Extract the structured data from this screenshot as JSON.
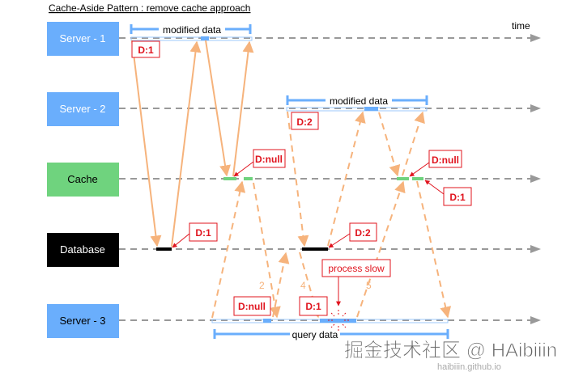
{
  "title": "Cache-Aside Pattern : remove cache approach",
  "time_label": "time",
  "lanes": [
    {
      "label": "Server - 1",
      "color": "#6aaefc"
    },
    {
      "label": "Server - 2",
      "color": "#6aaefc"
    },
    {
      "label": "Cache",
      "color": "#6fd37e"
    },
    {
      "label": "Database",
      "color": "#000000"
    },
    {
      "label": "Server - 3",
      "color": "#6aaefc"
    }
  ],
  "brackets": {
    "server1": "modified data",
    "server2": "modified data",
    "server3": "query data"
  },
  "notes": {
    "s1_d1": "D:1",
    "cache_null_1": "D:null",
    "db_d1": "D:1",
    "s2_d2": "D:2",
    "cache_null_2": "D:null",
    "cache_d1": "D:1",
    "db_d2": "D:2",
    "process_slow": "process slow",
    "s3_null": "D:null",
    "s3_d1": "D:1"
  },
  "step_labels": [
    "2",
    "4",
    "5"
  ],
  "watermark": {
    "main": "掘金技术社区 @ HAibiiin",
    "sub": "haibiiin.github.io"
  },
  "colors": {
    "arrow": "#f6b37c",
    "note": "#e0141e",
    "timeline": "#999999",
    "bracket": "#6aaefc"
  }
}
